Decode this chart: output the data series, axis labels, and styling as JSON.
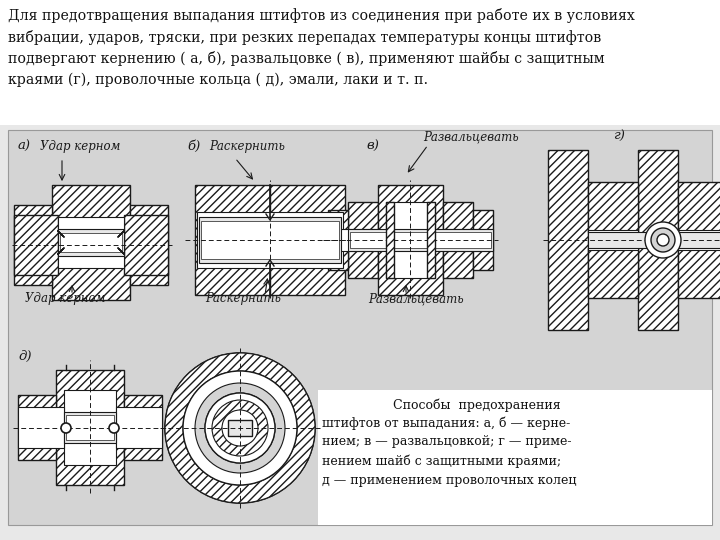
{
  "bg_color": "#e8e8e8",
  "page_bg": "#ffffff",
  "title_text": "Для предотвращения выпадания штифтов из соединения при работе их в условиях\nвибрации, ударов, тряски, при резких перепадах температуры концы штифтов\nподвергают кернению ( а, б), развальцовке ( в), применяют шайбы с защитным\nкраями (г), проволочные кольца ( д), эмали, лаки и т. п.",
  "caption_text": "Способы предохранения штифтов от выпадания: а, б — керне-\nнием; в — развальцовкой; г — приме-\nнением шайб с защитными краями;\nд — применением проволочных колец",
  "line_color": "#1a1a1a",
  "diagram_bg": "#d4d4d4",
  "hatch": "////",
  "label_a": "а)",
  "label_b": "б)",
  "label_v": "в)",
  "label_g": "г)",
  "label_d": "д)",
  "text_a1": "Удар керном",
  "text_a2": "Удар керном",
  "text_b1": "Раскернить",
  "text_b2": "Раскернить",
  "text_v1": "Развальцевать",
  "text_v2": "Развальцевать"
}
